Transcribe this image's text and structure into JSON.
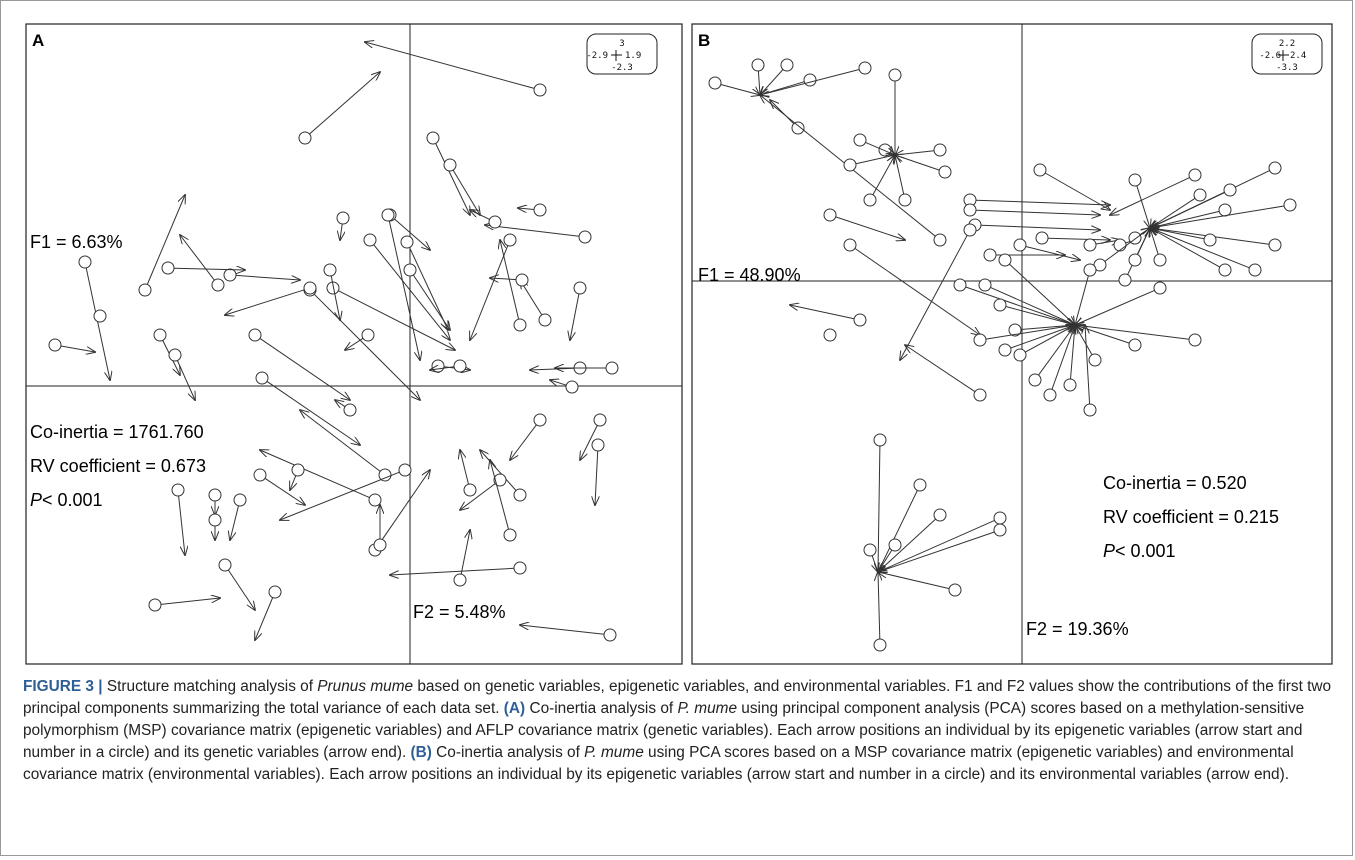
{
  "panels": {
    "a": {
      "label": "A",
      "scale_box": [
        "3",
        "-2.9",
        "1.9",
        "-2.3"
      ],
      "f1": "F1 = 6.63%",
      "f2": "F2 = 5.48%",
      "coinertia": "Co-inertia = 1761.760",
      "rv": "RV coefficient = 0.673",
      "p_letter": "P",
      "p_rest": "< 0.001",
      "arrows": [
        [
          540,
          90,
          365,
          42
        ],
        [
          305,
          138,
          380,
          72
        ],
        [
          585,
          237,
          485,
          225
        ],
        [
          540,
          210,
          518,
          208
        ],
        [
          495,
          222,
          470,
          210
        ],
        [
          433,
          138,
          470,
          215
        ],
        [
          450,
          165,
          480,
          215
        ],
        [
          510,
          240,
          470,
          340
        ],
        [
          520,
          325,
          500,
          240
        ],
        [
          545,
          320,
          520,
          280
        ],
        [
          522,
          280,
          490,
          278
        ],
        [
          580,
          288,
          570,
          340
        ],
        [
          580,
          368,
          530,
          370
        ],
        [
          612,
          368,
          555,
          368
        ],
        [
          572,
          387,
          550,
          380
        ],
        [
          600,
          420,
          580,
          460
        ],
        [
          598,
          445,
          595,
          505
        ],
        [
          540,
          420,
          510,
          460
        ],
        [
          520,
          495,
          480,
          450
        ],
        [
          500,
          480,
          460,
          510
        ],
        [
          510,
          535,
          490,
          460
        ],
        [
          470,
          490,
          460,
          450
        ],
        [
          460,
          580,
          470,
          530
        ],
        [
          438,
          366,
          470,
          370
        ],
        [
          460,
          366,
          430,
          370
        ],
        [
          410,
          270,
          450,
          330
        ],
        [
          407,
          242,
          448,
          330
        ],
        [
          370,
          240,
          450,
          340
        ],
        [
          390,
          215,
          430,
          250
        ],
        [
          388,
          215,
          420,
          360
        ],
        [
          333,
          288,
          455,
          350
        ],
        [
          310,
          290,
          420,
          400
        ],
        [
          368,
          335,
          345,
          350
        ],
        [
          350,
          410,
          335,
          400
        ],
        [
          385,
          475,
          300,
          410
        ],
        [
          375,
          500,
          260,
          450
        ],
        [
          405,
          470,
          280,
          520
        ],
        [
          520,
          568,
          390,
          575
        ],
        [
          610,
          635,
          520,
          625
        ],
        [
          375,
          550,
          430,
          470
        ],
        [
          380,
          545,
          380,
          505
        ],
        [
          260,
          475,
          305,
          505
        ],
        [
          255,
          335,
          350,
          400
        ],
        [
          262,
          378,
          360,
          445
        ],
        [
          230,
          275,
          300,
          280
        ],
        [
          310,
          288,
          225,
          315
        ],
        [
          168,
          268,
          245,
          270
        ],
        [
          218,
          285,
          180,
          235
        ],
        [
          145,
          290,
          185,
          195
        ],
        [
          160,
          335,
          180,
          375
        ],
        [
          175,
          355,
          195,
          400
        ],
        [
          85,
          262,
          110,
          380
        ],
        [
          100,
          316,
          95,
          320
        ],
        [
          55,
          345,
          95,
          352
        ],
        [
          298,
          470,
          290,
          490
        ],
        [
          215,
          495,
          215,
          515
        ],
        [
          240,
          500,
          230,
          540
        ],
        [
          178,
          490,
          185,
          555
        ],
        [
          215,
          520,
          215,
          540
        ],
        [
          225,
          565,
          255,
          610
        ],
        [
          275,
          592,
          255,
          640
        ],
        [
          155,
          605,
          220,
          598
        ],
        [
          343,
          218,
          340,
          240
        ],
        [
          330,
          270,
          340,
          320
        ]
      ]
    },
    "b": {
      "label": "B",
      "scale_box": [
        "2.2",
        "-2.6",
        "2.4",
        "-3.3"
      ],
      "f1": "F1 = 48.90%",
      "f2": "F2 = 19.36%",
      "coinertia": "Co-inertia = 0.520",
      "rv": "RV coefficient = 0.215",
      "p_letter": "P",
      "p_rest": "< 0.001",
      "arrows": [
        [
          715,
          83,
          760,
          95
        ],
        [
          758,
          65,
          760,
          95
        ],
        [
          810,
          80,
          760,
          95
        ],
        [
          865,
          68,
          760,
          95
        ],
        [
          787,
          65,
          760,
          95
        ],
        [
          798,
          128,
          770,
          100
        ],
        [
          895,
          75,
          895,
          155
        ],
        [
          940,
          150,
          895,
          155
        ],
        [
          885,
          150,
          895,
          155
        ],
        [
          830,
          215,
          905,
          240
        ],
        [
          940,
          240,
          760,
          95
        ],
        [
          945,
          172,
          895,
          155
        ],
        [
          850,
          165,
          895,
          155
        ],
        [
          860,
          140,
          895,
          155
        ],
        [
          870,
          200,
          895,
          155
        ],
        [
          905,
          200,
          895,
          155
        ],
        [
          1040,
          170,
          1110,
          210
        ],
        [
          1195,
          175,
          1110,
          215
        ],
        [
          1225,
          210,
          1150,
          228
        ],
        [
          1275,
          168,
          1150,
          228
        ],
        [
          1290,
          205,
          1150,
          228
        ],
        [
          1275,
          245,
          1150,
          228
        ],
        [
          1225,
          270,
          1150,
          228
        ],
        [
          1210,
          240,
          1150,
          228
        ],
        [
          1255,
          270,
          1150,
          228
        ],
        [
          1135,
          180,
          1150,
          228
        ],
        [
          970,
          200,
          1110,
          205
        ],
        [
          970,
          210,
          1100,
          215
        ],
        [
          975,
          225,
          1100,
          230
        ],
        [
          1042,
          238,
          1110,
          240
        ],
        [
          1090,
          245,
          1120,
          240
        ],
        [
          1120,
          245,
          1140,
          238
        ],
        [
          1135,
          238,
          1150,
          228
        ],
        [
          1020,
          245,
          1080,
          260
        ],
        [
          990,
          255,
          1065,
          255
        ],
        [
          1200,
          195,
          1150,
          228
        ],
        [
          1230,
          190,
          1150,
          228
        ],
        [
          1100,
          265,
          1150,
          228
        ],
        [
          1125,
          280,
          1150,
          228
        ],
        [
          1160,
          260,
          1150,
          228
        ],
        [
          1135,
          260,
          1150,
          228
        ],
        [
          960,
          285,
          1075,
          325
        ],
        [
          970,
          230,
          900,
          360
        ],
        [
          850,
          245,
          980,
          335
        ],
        [
          980,
          395,
          905,
          345
        ],
        [
          1000,
          305,
          1075,
          325
        ],
        [
          1090,
          270,
          1075,
          325
        ],
        [
          1160,
          288,
          1075,
          325
        ],
        [
          1195,
          340,
          1075,
          325
        ],
        [
          1135,
          345,
          1075,
          325
        ],
        [
          1095,
          360,
          1075,
          325
        ],
        [
          1090,
          410,
          1085,
          325
        ],
        [
          1015,
          330,
          1075,
          325
        ],
        [
          985,
          285,
          1075,
          325
        ],
        [
          1005,
          260,
          1075,
          325
        ],
        [
          1005,
          350,
          1075,
          325
        ],
        [
          1020,
          355,
          1075,
          325
        ],
        [
          1035,
          380,
          1075,
          325
        ],
        [
          1050,
          395,
          1075,
          325
        ],
        [
          1070,
          385,
          1075,
          325
        ],
        [
          980,
          340,
          1075,
          325
        ],
        [
          860,
          320,
          790,
          305
        ],
        [
          830,
          335,
          830,
          335
        ],
        [
          880,
          440,
          878,
          572
        ],
        [
          920,
          485,
          878,
          572
        ],
        [
          940,
          515,
          878,
          572
        ],
        [
          1000,
          518,
          878,
          572
        ],
        [
          1000,
          530,
          878,
          572
        ],
        [
          955,
          590,
          878,
          572
        ],
        [
          895,
          545,
          878,
          572
        ],
        [
          870,
          550,
          878,
          572
        ],
        [
          880,
          645,
          878,
          572
        ]
      ]
    }
  },
  "caption": {
    "lead": "FIGURE 3 |",
    "t1": " Structure matching analysis of ",
    "species": "Prunus mume",
    "t2": " based on genetic variables, epigenetic variables, and environmental variables. F1 and F2 values show the contributions of the first two principal components summarizing the total variance of each data set. ",
    "a_tag": "(A)",
    "t3": " Co-inertia analysis of ",
    "species_short": "P. mume",
    "t4": " using principal component analysis (PCA) scores based on a methylation-sensitive polymorphism (MSP) covariance matrix (epigenetic variables) and AFLP covariance matrix (genetic variables). Each arrow positions an individual by its epigenetic variables (arrow start and number in a circle) and its genetic variables (arrow end). ",
    "b_tag": "(B)",
    "t5": " Co-inertia analysis of ",
    "species_short2": "P. mume",
    "t6": " using PCA scores based on a MSP covariance matrix (epigenetic variables) and environmental covariance matrix (environmental variables). Each arrow positions an individual by its epigenetic variables (arrow start and number in a circle) and its environmental variables (arrow end)."
  }
}
